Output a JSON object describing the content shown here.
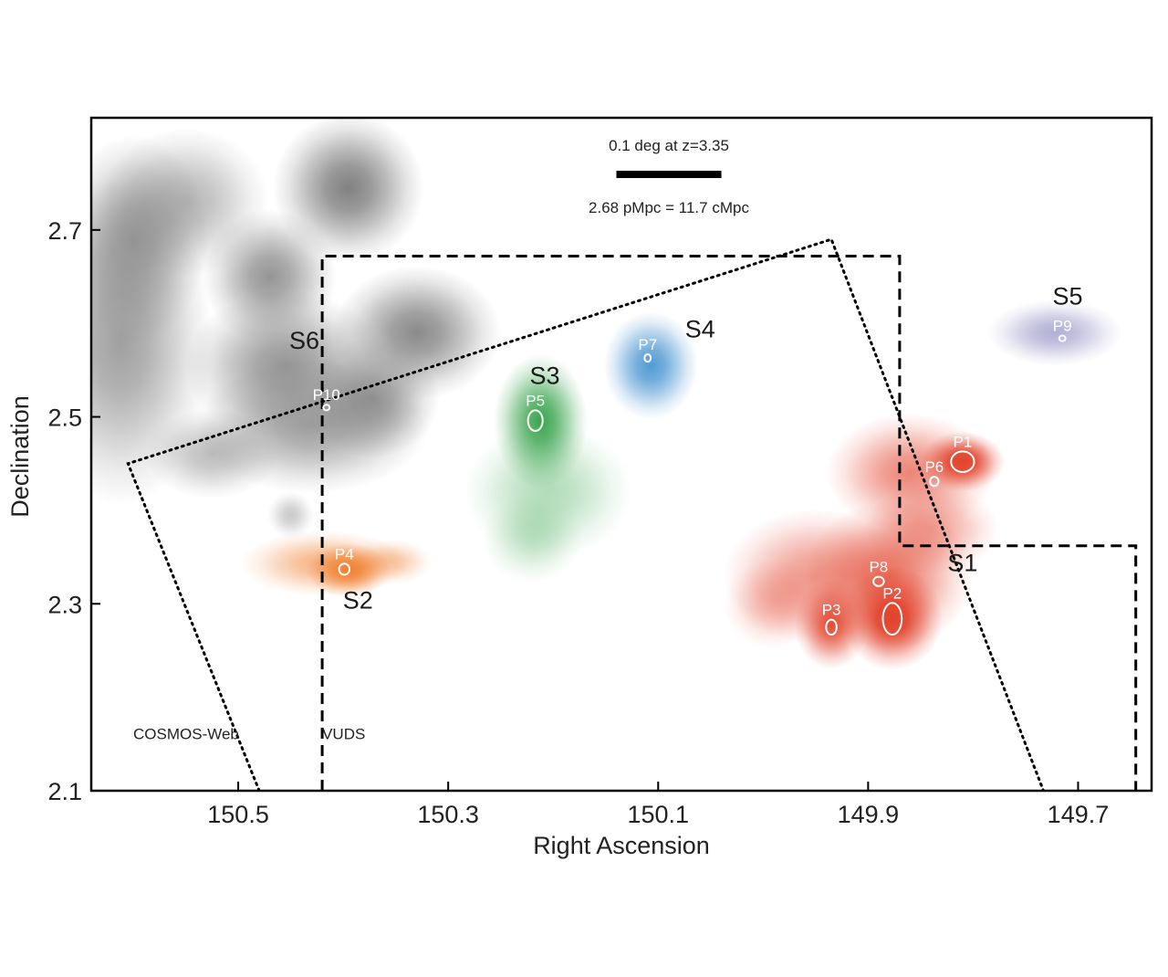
{
  "chart_data": {
    "type": "scatter",
    "xlabel": "Right Ascension",
    "ylabel": "Declination",
    "xlim": [
      150.64,
      149.63
    ],
    "ylim": [
      2.1,
      2.82
    ],
    "x_ticks": [
      150.5,
      150.3,
      150.1,
      149.9,
      149.7
    ],
    "x_tick_labels": [
      "150.5",
      "150.3",
      "150.1",
      "149.9",
      "149.7"
    ],
    "y_ticks": [
      2.1,
      2.3,
      2.5,
      2.7
    ],
    "y_tick_labels": [
      "2.1",
      "2.3",
      "2.5",
      "2.7"
    ],
    "grid": false,
    "scale_bar": {
      "top_text": "0.1 deg at z=3.35",
      "bottom_text": "2.68 pMpc = 11.7 cMpc",
      "length_deg": 0.1
    },
    "field_labels": [
      {
        "text": "COSMOS-Web",
        "ra": 150.6,
        "dec": 2.155
      },
      {
        "text": "VUDS",
        "ra": 150.42,
        "dec": 2.155
      }
    ],
    "structures": [
      {
        "name": "S1",
        "ra": 149.81,
        "dec": 2.335,
        "color": "#e2432c"
      },
      {
        "name": "S2",
        "ra": 150.386,
        "dec": 2.295,
        "color": "#f07f2e"
      },
      {
        "name": "S3",
        "ra": 150.208,
        "dec": 2.535,
        "color": "#3aa54e"
      },
      {
        "name": "S4",
        "ra": 150.06,
        "dec": 2.585,
        "color": "#3f8fce"
      },
      {
        "name": "S5",
        "ra": 149.71,
        "dec": 2.62,
        "color": "#7e7ab8"
      },
      {
        "name": "S6",
        "ra": 150.437,
        "dec": 2.573,
        "color": "#7a7a7a"
      }
    ],
    "peaks": [
      {
        "name": "P1",
        "ra": 149.81,
        "dec": 2.452,
        "rx": 0.011,
        "ry": 0.011
      },
      {
        "name": "P2",
        "ra": 149.877,
        "dec": 2.284,
        "rx": 0.009,
        "ry": 0.017
      },
      {
        "name": "P3",
        "ra": 149.935,
        "dec": 2.275,
        "rx": 0.005,
        "ry": 0.008
      },
      {
        "name": "P4",
        "ra": 150.399,
        "dec": 2.337,
        "rx": 0.005,
        "ry": 0.006
      },
      {
        "name": "P5",
        "ra": 150.217,
        "dec": 2.496,
        "rx": 0.007,
        "ry": 0.011
      },
      {
        "name": "P6",
        "ra": 149.837,
        "dec": 2.431,
        "rx": 0.004,
        "ry": 0.005
      },
      {
        "name": "P7",
        "ra": 150.11,
        "dec": 2.563,
        "rx": 0.003,
        "ry": 0.004
      },
      {
        "name": "P8",
        "ra": 149.89,
        "dec": 2.324,
        "rx": 0.005,
        "ry": 0.005
      },
      {
        "name": "P9",
        "ra": 149.715,
        "dec": 2.584,
        "rx": 0.003,
        "ry": 0.003
      },
      {
        "name": "P10",
        "ra": 150.416,
        "dec": 2.51,
        "rx": 0.003,
        "ry": 0.003
      }
    ],
    "footprints": [
      {
        "name": "VUDS",
        "style": "dashed",
        "vertices": [
          [
            150.42,
            2.1
          ],
          [
            150.42,
            2.672
          ],
          [
            149.87,
            2.672
          ],
          [
            149.87,
            2.362
          ],
          [
            149.645,
            2.362
          ],
          [
            149.645,
            2.1
          ]
        ]
      },
      {
        "name": "COSMOS-Web",
        "style": "dotted",
        "vertices": [
          [
            150.48,
            2.1
          ],
          [
            150.605,
            2.45
          ],
          [
            149.935,
            2.69
          ],
          [
            149.733,
            2.1
          ]
        ]
      }
    ],
    "density_blobs": [
      {
        "group": "S6",
        "color": "#7a7a7a",
        "ra": 150.612,
        "dec": 2.58,
        "sra": 0.055,
        "sdec": 0.11,
        "peak": 0.72
      },
      {
        "group": "S6",
        "color": "#7a7a7a",
        "ra": 150.6,
        "dec": 2.69,
        "sra": 0.045,
        "sdec": 0.07,
        "peak": 0.7
      },
      {
        "group": "S6",
        "color": "#7a7a7a",
        "ra": 150.55,
        "dec": 2.73,
        "sra": 0.05,
        "sdec": 0.05,
        "peak": 0.55
      },
      {
        "group": "S6",
        "color": "#7a7a7a",
        "ra": 150.395,
        "dec": 2.745,
        "sra": 0.045,
        "sdec": 0.05,
        "peak": 0.95
      },
      {
        "group": "S6",
        "color": "#7a7a7a",
        "ra": 150.47,
        "dec": 2.65,
        "sra": 0.04,
        "sdec": 0.045,
        "peak": 0.8
      },
      {
        "group": "S6",
        "color": "#7a7a7a",
        "ra": 150.455,
        "dec": 2.555,
        "sra": 0.06,
        "sdec": 0.05,
        "peak": 0.8
      },
      {
        "group": "S6",
        "color": "#7a7a7a",
        "ra": 150.43,
        "dec": 2.49,
        "sra": 0.07,
        "sdec": 0.045,
        "peak": 0.72
      },
      {
        "group": "S6",
        "color": "#7a7a7a",
        "ra": 150.372,
        "dec": 2.52,
        "sra": 0.04,
        "sdec": 0.04,
        "peak": 0.78
      },
      {
        "group": "S6",
        "color": "#7a7a7a",
        "ra": 150.33,
        "dec": 2.59,
        "sra": 0.05,
        "sdec": 0.045,
        "peak": 0.88
      },
      {
        "group": "S6",
        "color": "#7a7a7a",
        "ra": 150.525,
        "dec": 2.46,
        "sra": 0.04,
        "sdec": 0.03,
        "peak": 0.5
      },
      {
        "group": "S6",
        "color": "#7a7a7a",
        "ra": 150.45,
        "dec": 2.395,
        "sra": 0.014,
        "sdec": 0.016,
        "peak": 0.4
      },
      {
        "group": "S2",
        "color": "#f07f2e",
        "ra": 150.418,
        "dec": 2.343,
        "sra": 0.05,
        "sdec": 0.022,
        "peak": 0.6
      },
      {
        "group": "S2",
        "color": "#f07f2e",
        "ra": 150.395,
        "dec": 2.336,
        "sra": 0.025,
        "sdec": 0.018,
        "peak": 1.0
      },
      {
        "group": "S2",
        "color": "#f07f2e",
        "ra": 150.355,
        "dec": 2.345,
        "sra": 0.025,
        "sdec": 0.015,
        "peak": 0.45
      },
      {
        "group": "S3",
        "color": "#3aa54e",
        "ra": 150.212,
        "dec": 2.495,
        "sra": 0.028,
        "sdec": 0.045,
        "peak": 1.0
      },
      {
        "group": "S3",
        "color": "#3aa54e",
        "ra": 150.205,
        "dec": 2.42,
        "sra": 0.05,
        "sdec": 0.045,
        "peak": 0.4
      },
      {
        "group": "S3",
        "color": "#3aa54e",
        "ra": 150.22,
        "dec": 2.37,
        "sra": 0.03,
        "sdec": 0.03,
        "peak": 0.3
      },
      {
        "group": "S4",
        "color": "#3f8fce",
        "ra": 150.107,
        "dec": 2.555,
        "sra": 0.028,
        "sdec": 0.036,
        "peak": 0.9
      },
      {
        "group": "S5",
        "color": "#7e7ab8",
        "ra": 149.722,
        "dec": 2.59,
        "sra": 0.04,
        "sdec": 0.022,
        "peak": 0.6
      },
      {
        "group": "S1",
        "color": "#e2432c",
        "ra": 149.81,
        "dec": 2.452,
        "sra": 0.025,
        "sdec": 0.02,
        "peak": 1.15
      },
      {
        "group": "S1",
        "color": "#e2432c",
        "ra": 149.86,
        "dec": 2.44,
        "sra": 0.05,
        "sdec": 0.04,
        "peak": 0.65
      },
      {
        "group": "S1",
        "color": "#e2432c",
        "ra": 149.877,
        "dec": 2.285,
        "sra": 0.03,
        "sdec": 0.035,
        "peak": 1.15
      },
      {
        "group": "S1",
        "color": "#e2432c",
        "ra": 149.935,
        "dec": 2.278,
        "sra": 0.022,
        "sdec": 0.03,
        "peak": 0.95
      },
      {
        "group": "S1",
        "color": "#e2432c",
        "ra": 149.88,
        "dec": 2.33,
        "sra": 0.05,
        "sdec": 0.05,
        "peak": 0.75
      },
      {
        "group": "S1",
        "color": "#e2432c",
        "ra": 149.95,
        "dec": 2.33,
        "sra": 0.055,
        "sdec": 0.045,
        "peak": 0.55
      },
      {
        "group": "S1",
        "color": "#e2432c",
        "ra": 149.84,
        "dec": 2.38,
        "sra": 0.04,
        "sdec": 0.03,
        "peak": 0.5
      },
      {
        "group": "S1",
        "color": "#e2432c",
        "ra": 149.99,
        "dec": 2.3,
        "sra": 0.03,
        "sdec": 0.03,
        "peak": 0.35
      }
    ]
  }
}
